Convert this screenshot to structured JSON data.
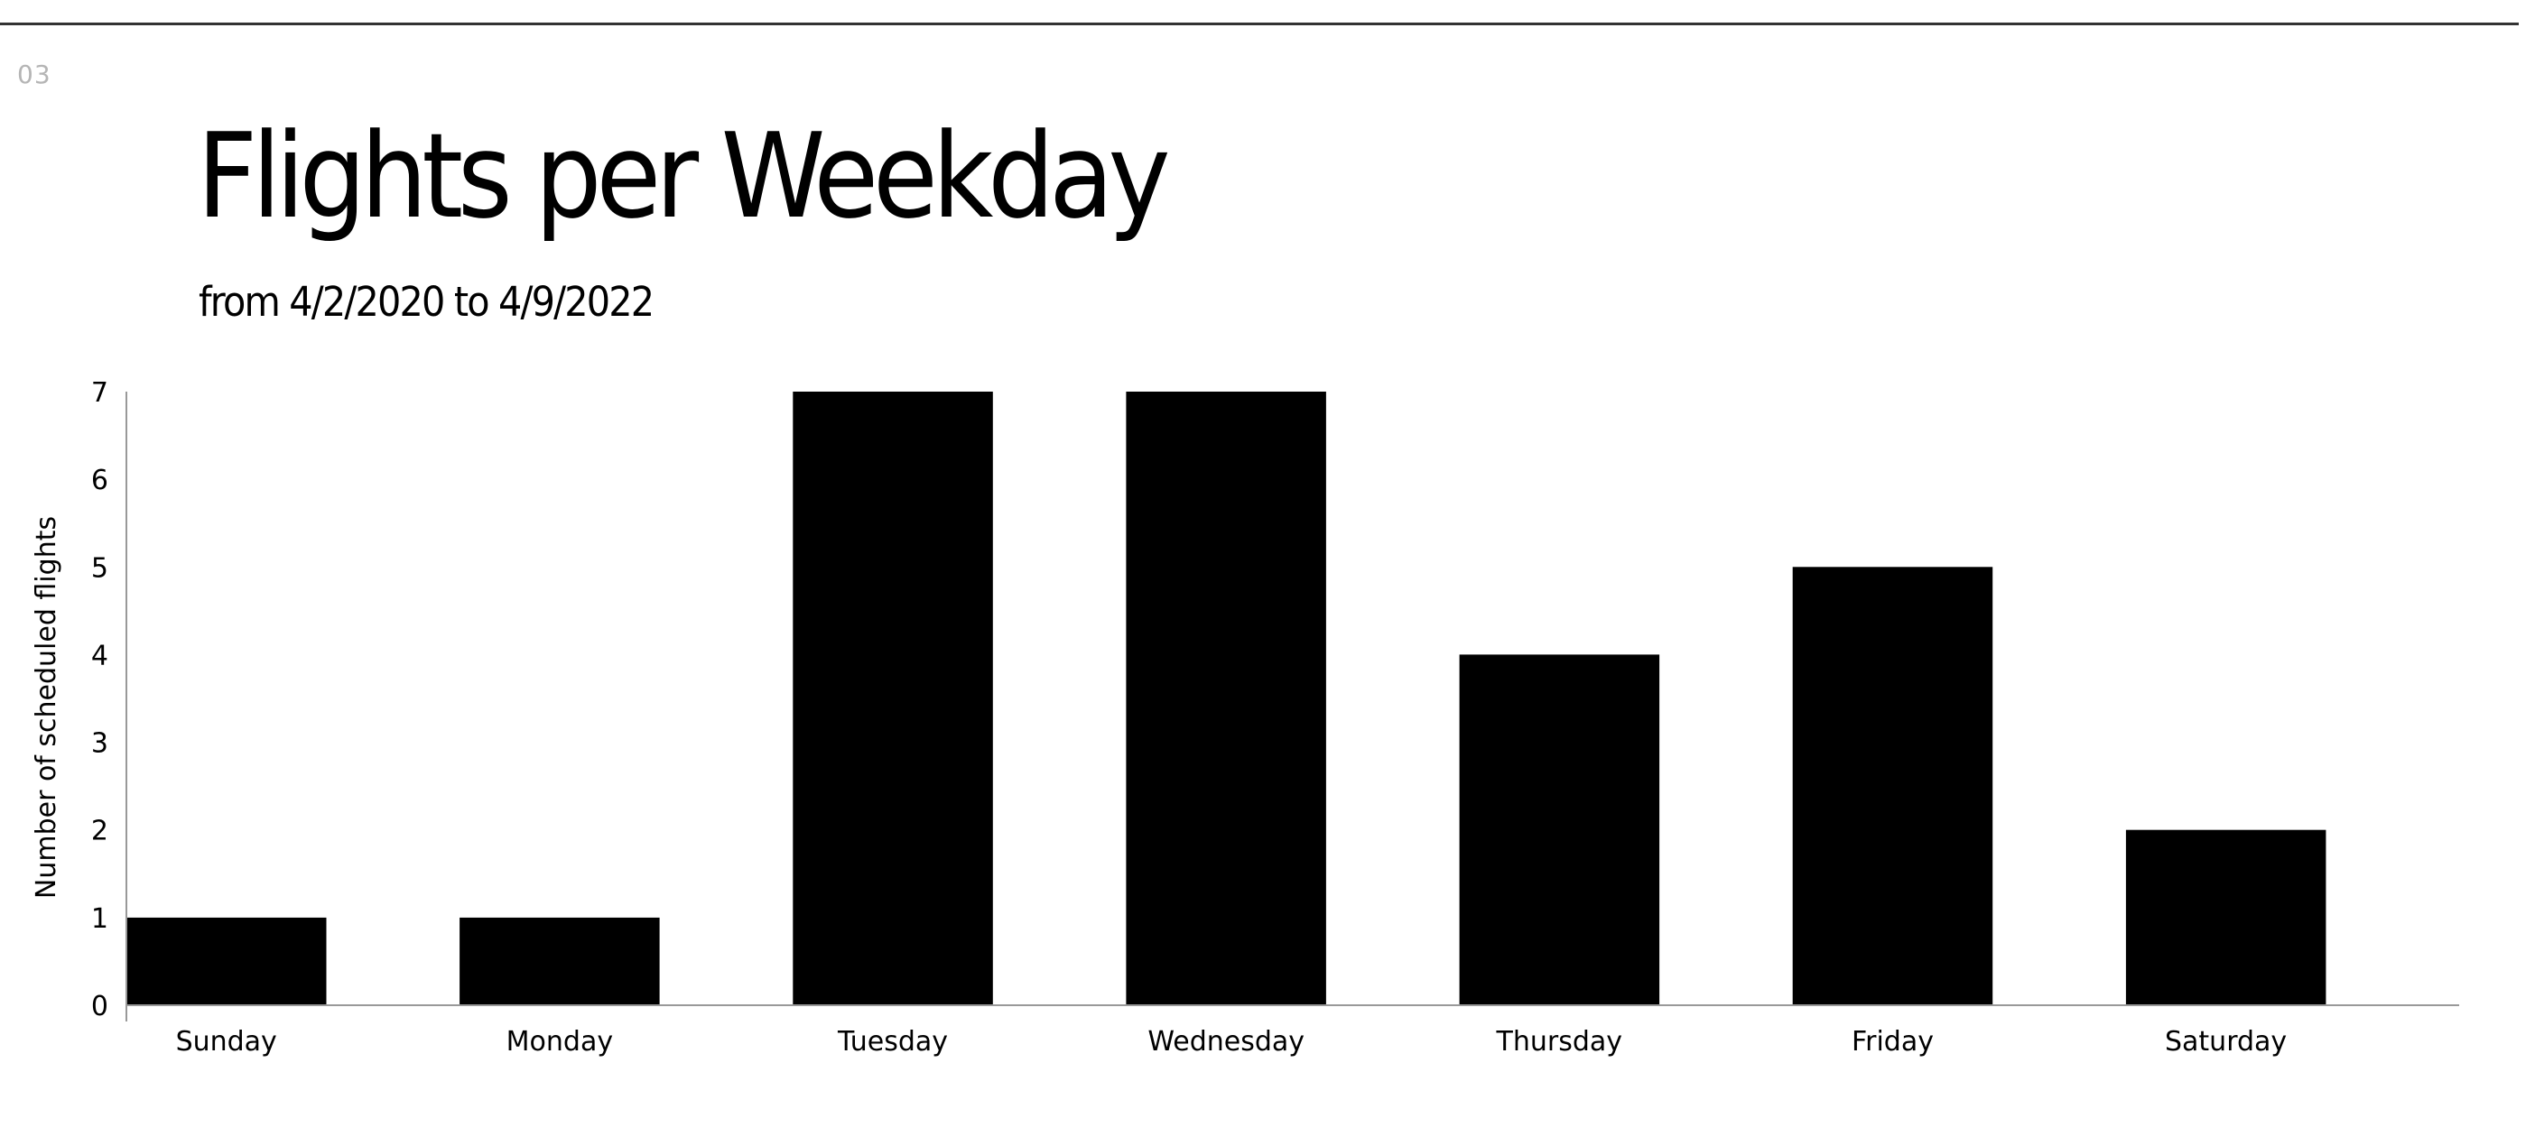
{
  "page": {
    "number": "03"
  },
  "chart_data": {
    "type": "bar",
    "title": "Flights per Weekday",
    "subtitle": "from 4/2/2020 to 4/9/2022",
    "xlabel": "",
    "ylabel": "Number of scheduled flights",
    "categories": [
      "Sunday",
      "Monday",
      "Tuesday",
      "Wednesday",
      "Thursday",
      "Friday",
      "Saturday"
    ],
    "values": [
      1,
      1,
      7,
      7,
      4,
      5,
      2
    ],
    "ylim": [
      0,
      7
    ],
    "yticks": [
      0,
      1,
      2,
      3,
      4,
      5,
      6,
      7
    ],
    "grid": false,
    "legend": "none",
    "bar_color": "#000000",
    "axis_color": "#999999"
  }
}
